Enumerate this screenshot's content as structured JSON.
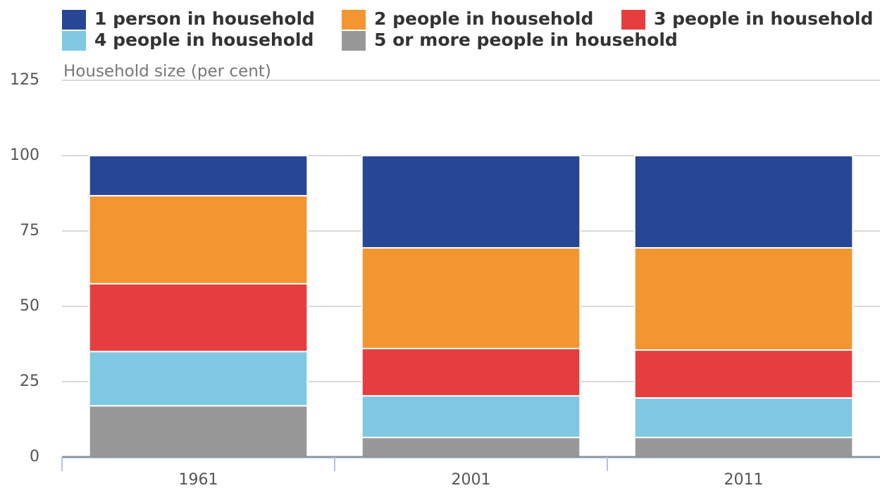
{
  "chart_data": {
    "type": "stacked_bar",
    "y_label": "Household size (per cent)",
    "categories": [
      "1961",
      "2001",
      "2011"
    ],
    "series": [
      {
        "name": "1 person in household",
        "color": "#274796",
        "values": [
          13.3,
          30.6,
          30.6
        ]
      },
      {
        "name": "2 people in household",
        "color": "#f39530",
        "values": [
          29.2,
          33.4,
          33.9
        ]
      },
      {
        "name": "3 people in household",
        "color": "#e63e3f",
        "values": [
          22.5,
          15.7,
          15.9
        ]
      },
      {
        "name": "4 people in household",
        "color": "#7ec8e3",
        "values": [
          18,
          13.8,
          13.1
        ]
      },
      {
        "name": "5 or more people in household",
        "color": "#989898",
        "values": [
          17,
          6.5,
          6.5
        ]
      }
    ],
    "ylim": [
      0,
      125
    ],
    "yticks": [
      0,
      25,
      50,
      75,
      100,
      125
    ],
    "grid": true,
    "legend": "top"
  }
}
